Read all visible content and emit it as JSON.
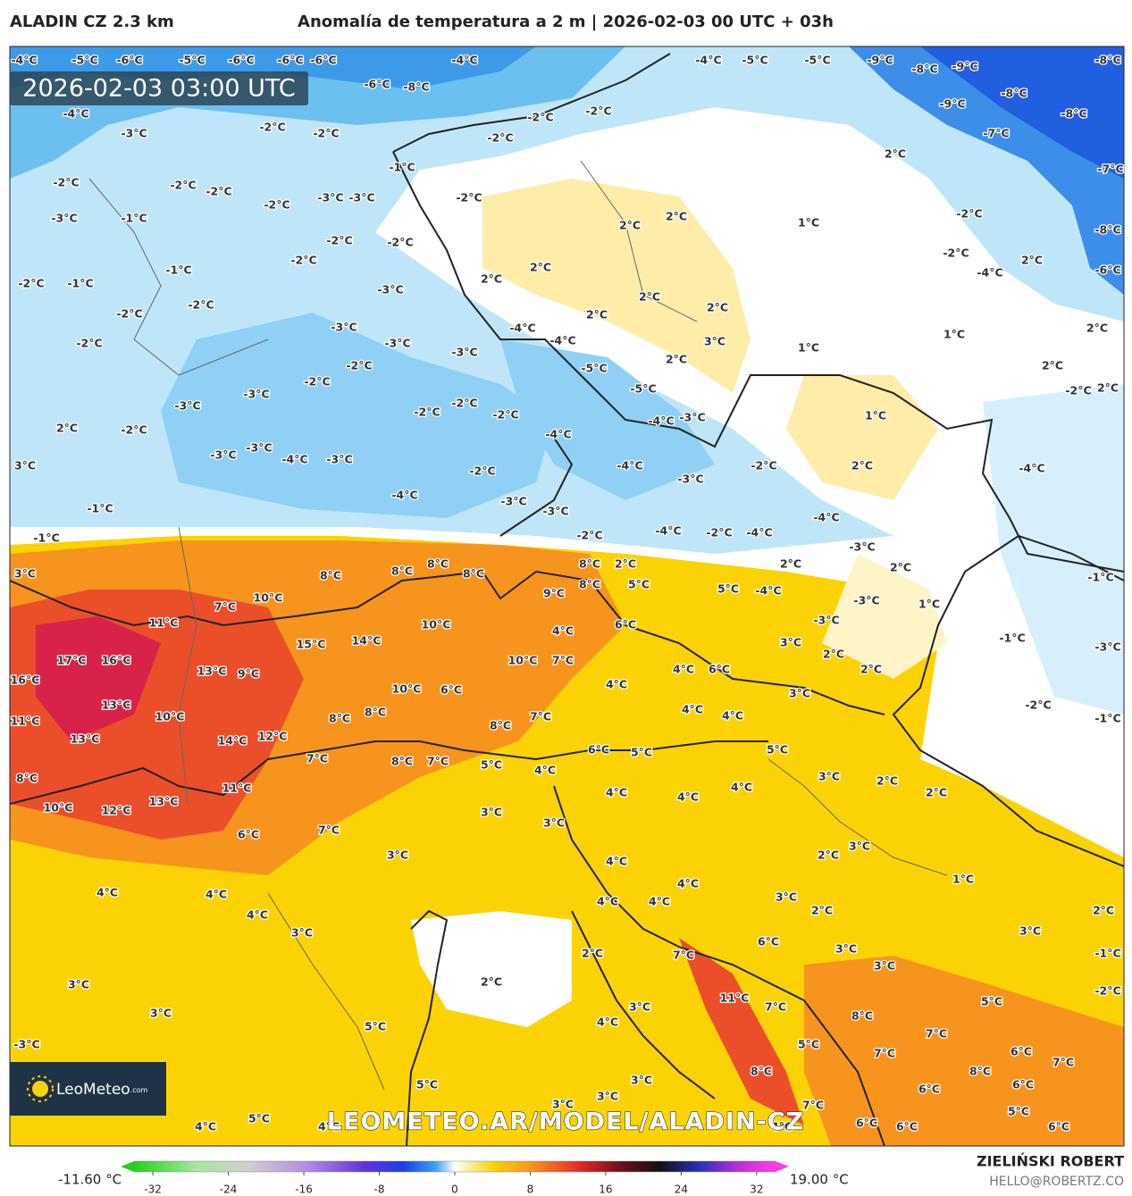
{
  "header": {
    "model": "ALADIN CZ 2.3 km",
    "title": "Anomalía de temperatura a 2 m | 2026-02-03 00 UTC + 03h"
  },
  "map": {
    "timestamp": "2026-02-03 03:00 UTC",
    "watermark": "LEOMETEO.AR/MODEL/ALADIN-CZ",
    "logo": {
      "name": "LeoMeteo",
      "suffix": ".com"
    },
    "labels": [
      "-4°C",
      "-5°C",
      "-6°C",
      "-5°C",
      "-6°C",
      "-6°C",
      "-6°C",
      "-4°C",
      "-4°C",
      "-5°C",
      "-5°C",
      "-9°C",
      "-8°C",
      "-9°C",
      "-8°C",
      "-6°C",
      "-8°C",
      "-4°C",
      "-9°C",
      "-8°C",
      "-8°C",
      "-3°C",
      "-2°C",
      "-2°C",
      "-2°C",
      "-2°C",
      "-2°C",
      "-7°C",
      "2°C",
      "-7°C",
      "-1°C",
      "-2°C",
      "-2°C",
      "-2°C",
      "-2°C",
      "-3°C",
      "-3°C",
      "-2°C",
      "-3°C",
      "-1°C",
      "2°C",
      "2°C",
      "1°C",
      "-2°C",
      "-8°C",
      "-2°C",
      "-2°C",
      "-2°C",
      "2°C",
      "-2°C",
      "2°C",
      "-1°C",
      "-2°C",
      "-1°C",
      "2°C",
      "-6°C",
      "-4°C",
      "-3°C",
      "2°C",
      "-2°C",
      "-2°C",
      "2°C",
      "2°C",
      "-3°C",
      "-4°C",
      "2°C",
      "-2°C",
      "-3°C",
      "-4°C",
      "3°C",
      "1°C",
      "1°C",
      "-3°C",
      "-2°C",
      "-5°C",
      "2°C",
      "2°C",
      "-2°C",
      "-5°C",
      "-2°C",
      "2°C",
      "-3°C",
      "-2°C",
      "-3°C",
      "-2°C",
      "-2°C",
      "-4°C",
      "-3°C",
      "1°C",
      "2°C",
      "-2°C",
      "-4°C",
      "-3°C",
      "-3°C",
      "-4°C",
      "-3°C",
      "3°C",
      "-4°C",
      "-2°C",
      "2°C",
      "-4°C",
      "-2°C",
      "-3°C",
      "-4°C",
      "-3°C",
      "-1°C",
      "-3°C",
      "-4°C",
      "-4°C",
      "-2°C",
      "-4°C",
      "-1°C",
      "-2°C",
      "-3°C",
      "3°C",
      "8°C",
      "8°C",
      "8°C",
      "8°C",
      "8°C",
      "2°C",
      "2°C",
      "2°C",
      "-1°C",
      "9°C",
      "8°C",
      "5°C",
      "5°C",
      "-4°C",
      "-3°C",
      "10°C",
      "7°C",
      "1°C",
      "11°C",
      "10°C",
      "6°C",
      "-3°C",
      "15°C",
      "14°C",
      "4°C",
      "3°C",
      "-1°C",
      "-3°C",
      "17°C",
      "16°C",
      "10°C",
      "7°C",
      "2°C",
      "13°C",
      "9°C",
      "4°C",
      "6°C",
      "2°C",
      "16°C",
      "10°C",
      "6°C",
      "4°C",
      "3°C",
      "13°C",
      "4°C",
      "-2°C",
      "10°C",
      "8°C",
      "8°C",
      "8°C",
      "7°C",
      "4°C",
      "-1°C",
      "11°C",
      "13°C",
      "14°C",
      "12°C",
      "6°C",
      "5°C",
      "5°C",
      "7°C",
      "8°C",
      "7°C",
      "5°C",
      "4°C",
      "8°C",
      "3°C",
      "2°C",
      "11°C",
      "4°C",
      "4°C",
      "4°C",
      "2°C",
      "13°C",
      "12°C",
      "10°C",
      "3°C",
      "3°C",
      "6°C",
      "7°C",
      "3°C",
      "3°C",
      "2°C",
      "4°C",
      "4°C",
      "4°C",
      "4°C",
      "1°C",
      "3°C",
      "4°C",
      "4°C",
      "4°C",
      "2°C",
      "2°C",
      "3°C",
      "3°C",
      "6°C",
      "3°C",
      "2°C",
      "7°C",
      "-1°C",
      "3°C",
      "3°C",
      "2°C",
      "-2°C",
      "11°C",
      "7°C",
      "5°C",
      "3°C",
      "8°C",
      "4°C",
      "3°C",
      "5°C",
      "7°C",
      "5°C",
      "-3°C",
      "6°C",
      "7°C",
      "8°C",
      "7°C",
      "8°C",
      "6°C",
      "6°C",
      "5°C",
      "3°C",
      "3°C",
      "3°C",
      "7°C",
      "5°C",
      "5°C",
      "4°C",
      "4°C",
      "6°C",
      "6°C",
      "6°C",
      "4°C"
    ]
  },
  "colorbar": {
    "min_label": "-11.60 °C",
    "max_label": "19.00 °C",
    "xlim": [
      -34,
      34
    ],
    "xticks": [
      -32,
      -24,
      -16,
      -8,
      0,
      8,
      16,
      24,
      32
    ]
  },
  "footer": {
    "author": "ZIELIŃSKI ROBERT",
    "email": "HELLO@ROBERTZ.CO"
  }
}
